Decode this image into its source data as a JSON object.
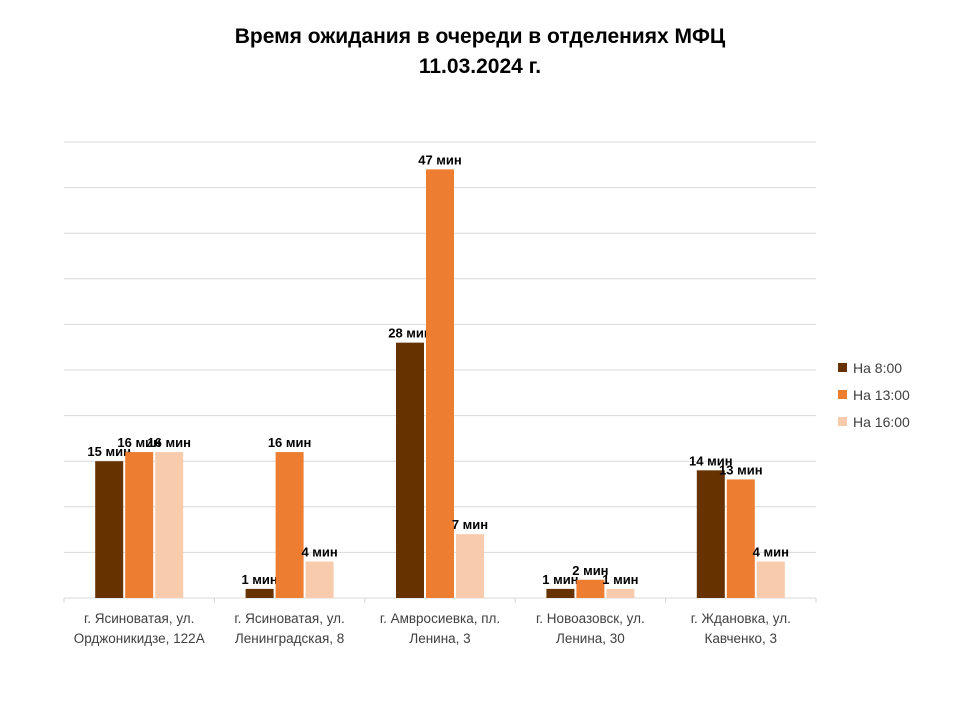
{
  "chart_data": {
    "type": "bar",
    "title": "Время ожидания в очереди в отделениях МФЦ",
    "subtitle": "11.03.2024   г.",
    "categories": [
      [
        "г. Ясиноватая, ул.",
        "Орджоникидзе, 122А"
      ],
      [
        "г. Ясиноватая, ул.",
        "Ленинградская, 8"
      ],
      [
        "г. Амвросиевка, пл.",
        "Ленина, 3"
      ],
      [
        "г. Новоазовск, ул.",
        "Ленина, 30"
      ],
      [
        "г. Ждановка, ул.",
        "Кавченко, 3"
      ]
    ],
    "series": [
      {
        "name": "На 8:00",
        "color": "#663300",
        "values": [
          15,
          1,
          28,
          1,
          14
        ],
        "labels": [
          "15 мин",
          "1 мин",
          "28 мин",
          "1 мин",
          "14 мин"
        ]
      },
      {
        "name": "На 13:00",
        "color": "#ED7D31",
        "values": [
          16,
          16,
          47,
          2,
          13
        ],
        "labels": [
          "16 мин",
          "16 мин",
          "47 мин",
          "2 мин",
          "13 мин"
        ]
      },
      {
        "name": "На 16:00",
        "color": "#F8CBAD",
        "values": [
          16,
          4,
          7,
          1,
          4
        ],
        "labels": [
          "16 мин",
          "4 мин",
          "7 мин",
          "1 мин",
          "4 мин"
        ]
      }
    ],
    "ylim": [
      0,
      50
    ],
    "gridlines": true,
    "legend_position": "right"
  }
}
